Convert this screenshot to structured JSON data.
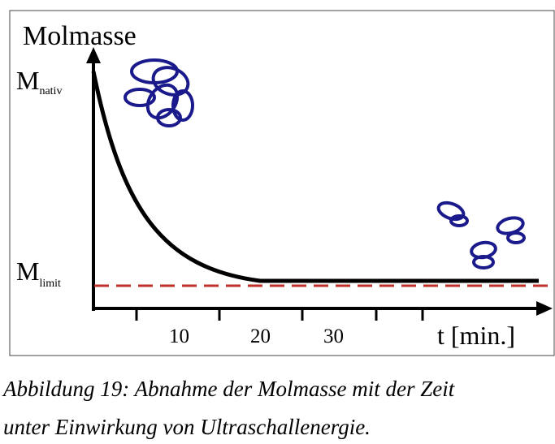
{
  "figure": {
    "y_axis_label": "Molmasse",
    "m_nativ": {
      "symbol": "M",
      "subscript": "nativ"
    },
    "m_limit": {
      "symbol": "M",
      "subscript": "limit"
    },
    "x_tick_labels": [
      "10",
      "20",
      "30"
    ],
    "x_axis_label": "t [min.]"
  },
  "caption": [
    "Abbildung 19: Abnahme der Molmasse mit der Zeit",
    "unter Einwirkung von Ultraschallenergie."
  ]
}
